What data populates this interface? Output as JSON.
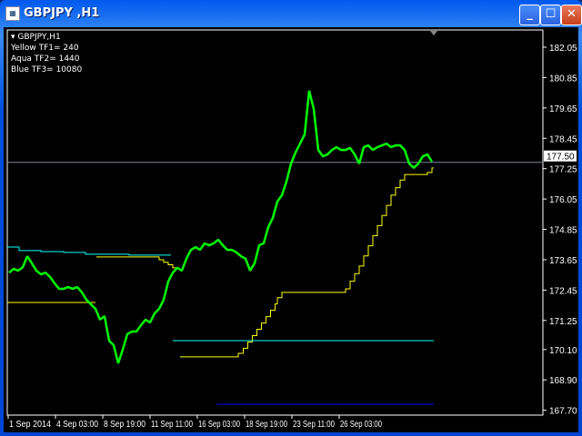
{
  "window": {
    "title": "GBPJPY ,H1",
    "buttons": [
      "minimize",
      "maximize",
      "close"
    ]
  },
  "legend": {
    "symbol": "GBPJPY,H1",
    "lines": [
      "Yellow TF1= 240",
      "Aqua TF2= 1440",
      "Blue TF3= 10080"
    ]
  },
  "chart_data": {
    "type": "line",
    "price_axis": [
      "182.05",
      "180.85",
      "179.65",
      "178.45",
      "177.25",
      "176.05",
      "174.85",
      "173.65",
      "172.45",
      "171.25",
      "170.10",
      "168.90",
      "167.70"
    ],
    "time_axis": [
      "1 Sep 2014",
      "4 Sep 03:00",
      "8 Sep 19:00",
      "11 Sep 11:00",
      "16 Sep 03:00",
      "18 Sep 19:00",
      "23 Sep 11:00",
      "26 Sep 03:00"
    ],
    "current_price": "177.50",
    "colors": {
      "price": "#00ff00",
      "yellow": "#ffff00",
      "aqua": "#00ffff",
      "blue": "#0000ff",
      "bid_line": "#778899"
    },
    "price_series": [
      173.14,
      173.29,
      173.22,
      173.35,
      173.79,
      173.51,
      173.22,
      173.07,
      173.14,
      172.97,
      172.72,
      172.5,
      172.5,
      172.57,
      172.5,
      172.57,
      172.36,
      172.07,
      171.89,
      171.71,
      171.28,
      171.42,
      170.45,
      170.27,
      169.56,
      170.1,
      170.71,
      170.81,
      170.81,
      171.06,
      171.28,
      171.17,
      171.53,
      171.71,
      172.07,
      172.79,
      173.14,
      173.33,
      173.22,
      173.69,
      174.04,
      174.15,
      174.04,
      174.3,
      174.22,
      174.3,
      174.44,
      174.22,
      174.04,
      174.04,
      173.94,
      173.79,
      173.69,
      173.22,
      173.51,
      174.22,
      174.3,
      174.94,
      175.3,
      175.95,
      176.2,
      176.74,
      177.45,
      177.89,
      178.24,
      178.6,
      180.33,
      179.61,
      177.99,
      177.74,
      177.81,
      177.99,
      178.1,
      177.99,
      177.99,
      178.07,
      177.81,
      177.45,
      178.1,
      178.17,
      177.99,
      178.1,
      178.17,
      178.24,
      178.1,
      178.17,
      178.17,
      177.99,
      177.45,
      177.28,
      177.45,
      177.74,
      177.81,
      177.53
    ],
    "indicator_lines": [
      {
        "color": "yellow",
        "points": [
          [
            -0.4,
            171.96
          ],
          [
            19,
            171.96
          ]
        ]
      },
      {
        "color": "yellow",
        "points": [
          [
            19.2,
            173.76
          ],
          [
            32,
            173.76
          ],
          [
            33,
            173.65
          ],
          [
            34,
            173.55
          ],
          [
            35,
            173.45
          ],
          [
            36,
            173.33
          ],
          [
            37.2,
            173.33
          ]
        ]
      },
      {
        "color": "yellow",
        "points": [
          [
            37.6,
            169.81
          ],
          [
            50.4,
            169.95
          ],
          [
            51.5,
            170.15
          ],
          [
            52.5,
            170.4
          ],
          [
            53.5,
            170.65
          ],
          [
            54.5,
            170.9
          ],
          [
            55.5,
            171.15
          ],
          [
            56.5,
            171.4
          ],
          [
            57.5,
            171.65
          ],
          [
            58.5,
            171.9
          ],
          [
            59,
            172.15
          ],
          [
            60,
            172.36
          ],
          [
            74,
            172.5
          ],
          [
            75,
            172.8
          ],
          [
            76,
            173.1
          ],
          [
            77,
            173.4
          ],
          [
            78,
            173.8
          ],
          [
            79,
            174.2
          ],
          [
            80,
            174.6
          ],
          [
            81,
            175.0
          ],
          [
            82,
            175.4
          ],
          [
            83,
            175.8
          ],
          [
            84,
            176.2
          ],
          [
            85,
            176.5
          ],
          [
            86,
            176.8
          ],
          [
            87,
            177.02
          ],
          [
            92,
            177.1
          ],
          [
            93,
            177.28
          ],
          [
            93.4,
            177.28
          ]
        ]
      },
      {
        "color": "aqua",
        "points": [
          [
            -0.4,
            174.15
          ],
          [
            2.2,
            174.01
          ],
          [
            7,
            173.97
          ],
          [
            12,
            173.94
          ],
          [
            16.8,
            173.87
          ],
          [
            26.4,
            173.83
          ],
          [
            35.6,
            173.83
          ]
        ]
      },
      {
        "color": "aqua",
        "points": [
          [
            36,
            170.45
          ],
          [
            93.4,
            170.45
          ]
        ]
      },
      {
        "color": "blue",
        "points": [
          [
            45.6,
            167.94
          ],
          [
            93.4,
            167.94
          ]
        ]
      }
    ]
  }
}
